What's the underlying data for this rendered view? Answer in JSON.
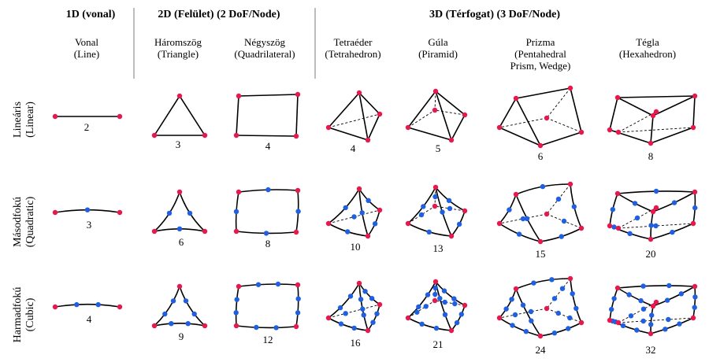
{
  "groups": {
    "g1d": "1D (vonal)",
    "g2d": "2D (Felület)  (2 DoF/Node)",
    "g3d": "3D (Térfogat) (3 DoF/Node)"
  },
  "columns": [
    {
      "id": "line",
      "lines": [
        "Vonal",
        "(Line)"
      ]
    },
    {
      "id": "triangle",
      "lines": [
        "Háromszög",
        "(Triangle)"
      ]
    },
    {
      "id": "quad",
      "lines": [
        "Négyszög",
        "(Quadrilateral)"
      ]
    },
    {
      "id": "tetra",
      "lines": [
        "Tetraéder",
        "(Tetrahedron)"
      ]
    },
    {
      "id": "pyramid",
      "lines": [
        "Gúla",
        "(Piramid)"
      ]
    },
    {
      "id": "prism",
      "lines": [
        "Prizma",
        "(Pentahedral",
        "Prism, Wedge)"
      ]
    },
    {
      "id": "hexa",
      "lines": [
        "Tégla",
        "(Hexahedron)"
      ]
    }
  ],
  "rows": [
    {
      "id": "linear",
      "lines": [
        "Lineáris",
        "(Linear)"
      ]
    },
    {
      "id": "quadratic",
      "lines": [
        "Másodfokú",
        "(Quadratic)"
      ]
    },
    {
      "id": "cubic",
      "lines": [
        "Harmadfokú",
        "(Cubic)"
      ]
    }
  ],
  "node_counts": {
    "linear": [
      "2",
      "3",
      "4",
      "4",
      "5",
      "6",
      "8"
    ],
    "quadratic": [
      "3",
      "6",
      "8",
      "10",
      "13",
      "15",
      "20"
    ],
    "cubic": [
      "4",
      "9",
      "12",
      "16",
      "21",
      "24",
      "32"
    ]
  },
  "colors": {
    "corner_node": "#e8174c",
    "mid_node": "#1f5fe0",
    "edge": "#000000",
    "separator": "#999999"
  }
}
